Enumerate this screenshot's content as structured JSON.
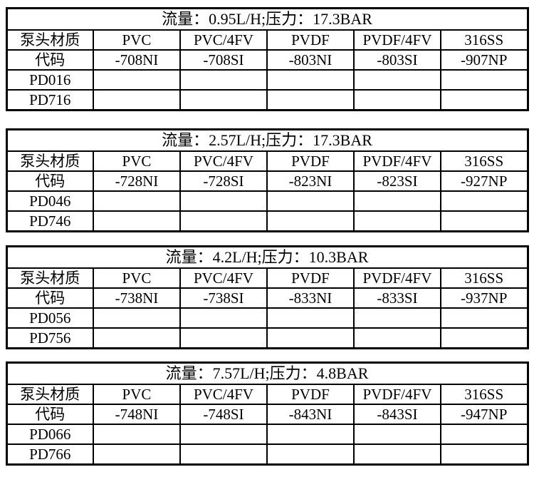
{
  "page": {
    "background_color": "#ffffff",
    "text_color": "#000000",
    "border_color": "#000000"
  },
  "tables": [
    {
      "title": "流量：0.95L/H;压力：17.3BAR",
      "headers": [
        "泵头材质",
        "PVC",
        "PVC/4FV",
        "PVDF",
        "PVDF/4FV",
        "316SS"
      ],
      "code_row": [
        "代码",
        "-708NI",
        "-708SI",
        "-803NI",
        "-803SI",
        "-907NP"
      ],
      "model_rows": [
        {
          "label": "PD016",
          "cells": [
            "",
            "",
            "",
            "",
            ""
          ]
        },
        {
          "label": "PD716",
          "cells": [
            "",
            "",
            "",
            "",
            ""
          ]
        }
      ]
    },
    {
      "title": "流量：2.57L/H;压力：17.3BAR",
      "headers": [
        "泵头材质",
        "PVC",
        "PVC/4FV",
        "PVDF",
        "PVDF/4FV",
        "316SS"
      ],
      "code_row": [
        "代码",
        "-728NI",
        "-728SI",
        "-823NI",
        "-823SI",
        "-927NP"
      ],
      "model_rows": [
        {
          "label": "PD046",
          "cells": [
            "",
            "",
            "",
            "",
            ""
          ]
        },
        {
          "label": "PD746",
          "cells": [
            "",
            "",
            "",
            "",
            ""
          ]
        }
      ]
    },
    {
      "title": "流量：4.2L/H;压力：10.3BAR",
      "headers": [
        "泵头材质",
        "PVC",
        "PVC/4FV",
        "PVDF",
        "PVDF/4FV",
        "316SS"
      ],
      "code_row": [
        "代码",
        "-738NI",
        "-738SI",
        "-833NI",
        "-833SI",
        "-937NP"
      ],
      "model_rows": [
        {
          "label": "PD056",
          "cells": [
            "",
            "",
            "",
            "",
            ""
          ]
        },
        {
          "label": "PD756",
          "cells": [
            "",
            "",
            "",
            "",
            ""
          ]
        }
      ]
    },
    {
      "title": "流量：7.57L/H;压力：4.8BAR",
      "headers": [
        "泵头材质",
        "PVC",
        "PVC/4FV",
        "PVDF",
        "PVDF/4FV",
        "316SS"
      ],
      "code_row": [
        "代码",
        "-748NI",
        "-748SI",
        "-843NI",
        "-843SI",
        "-947NP"
      ],
      "model_rows": [
        {
          "label": "PD066",
          "cells": [
            "",
            "",
            "",
            "",
            ""
          ]
        },
        {
          "label": "PD766",
          "cells": [
            "",
            "",
            "",
            "",
            ""
          ]
        }
      ]
    }
  ]
}
